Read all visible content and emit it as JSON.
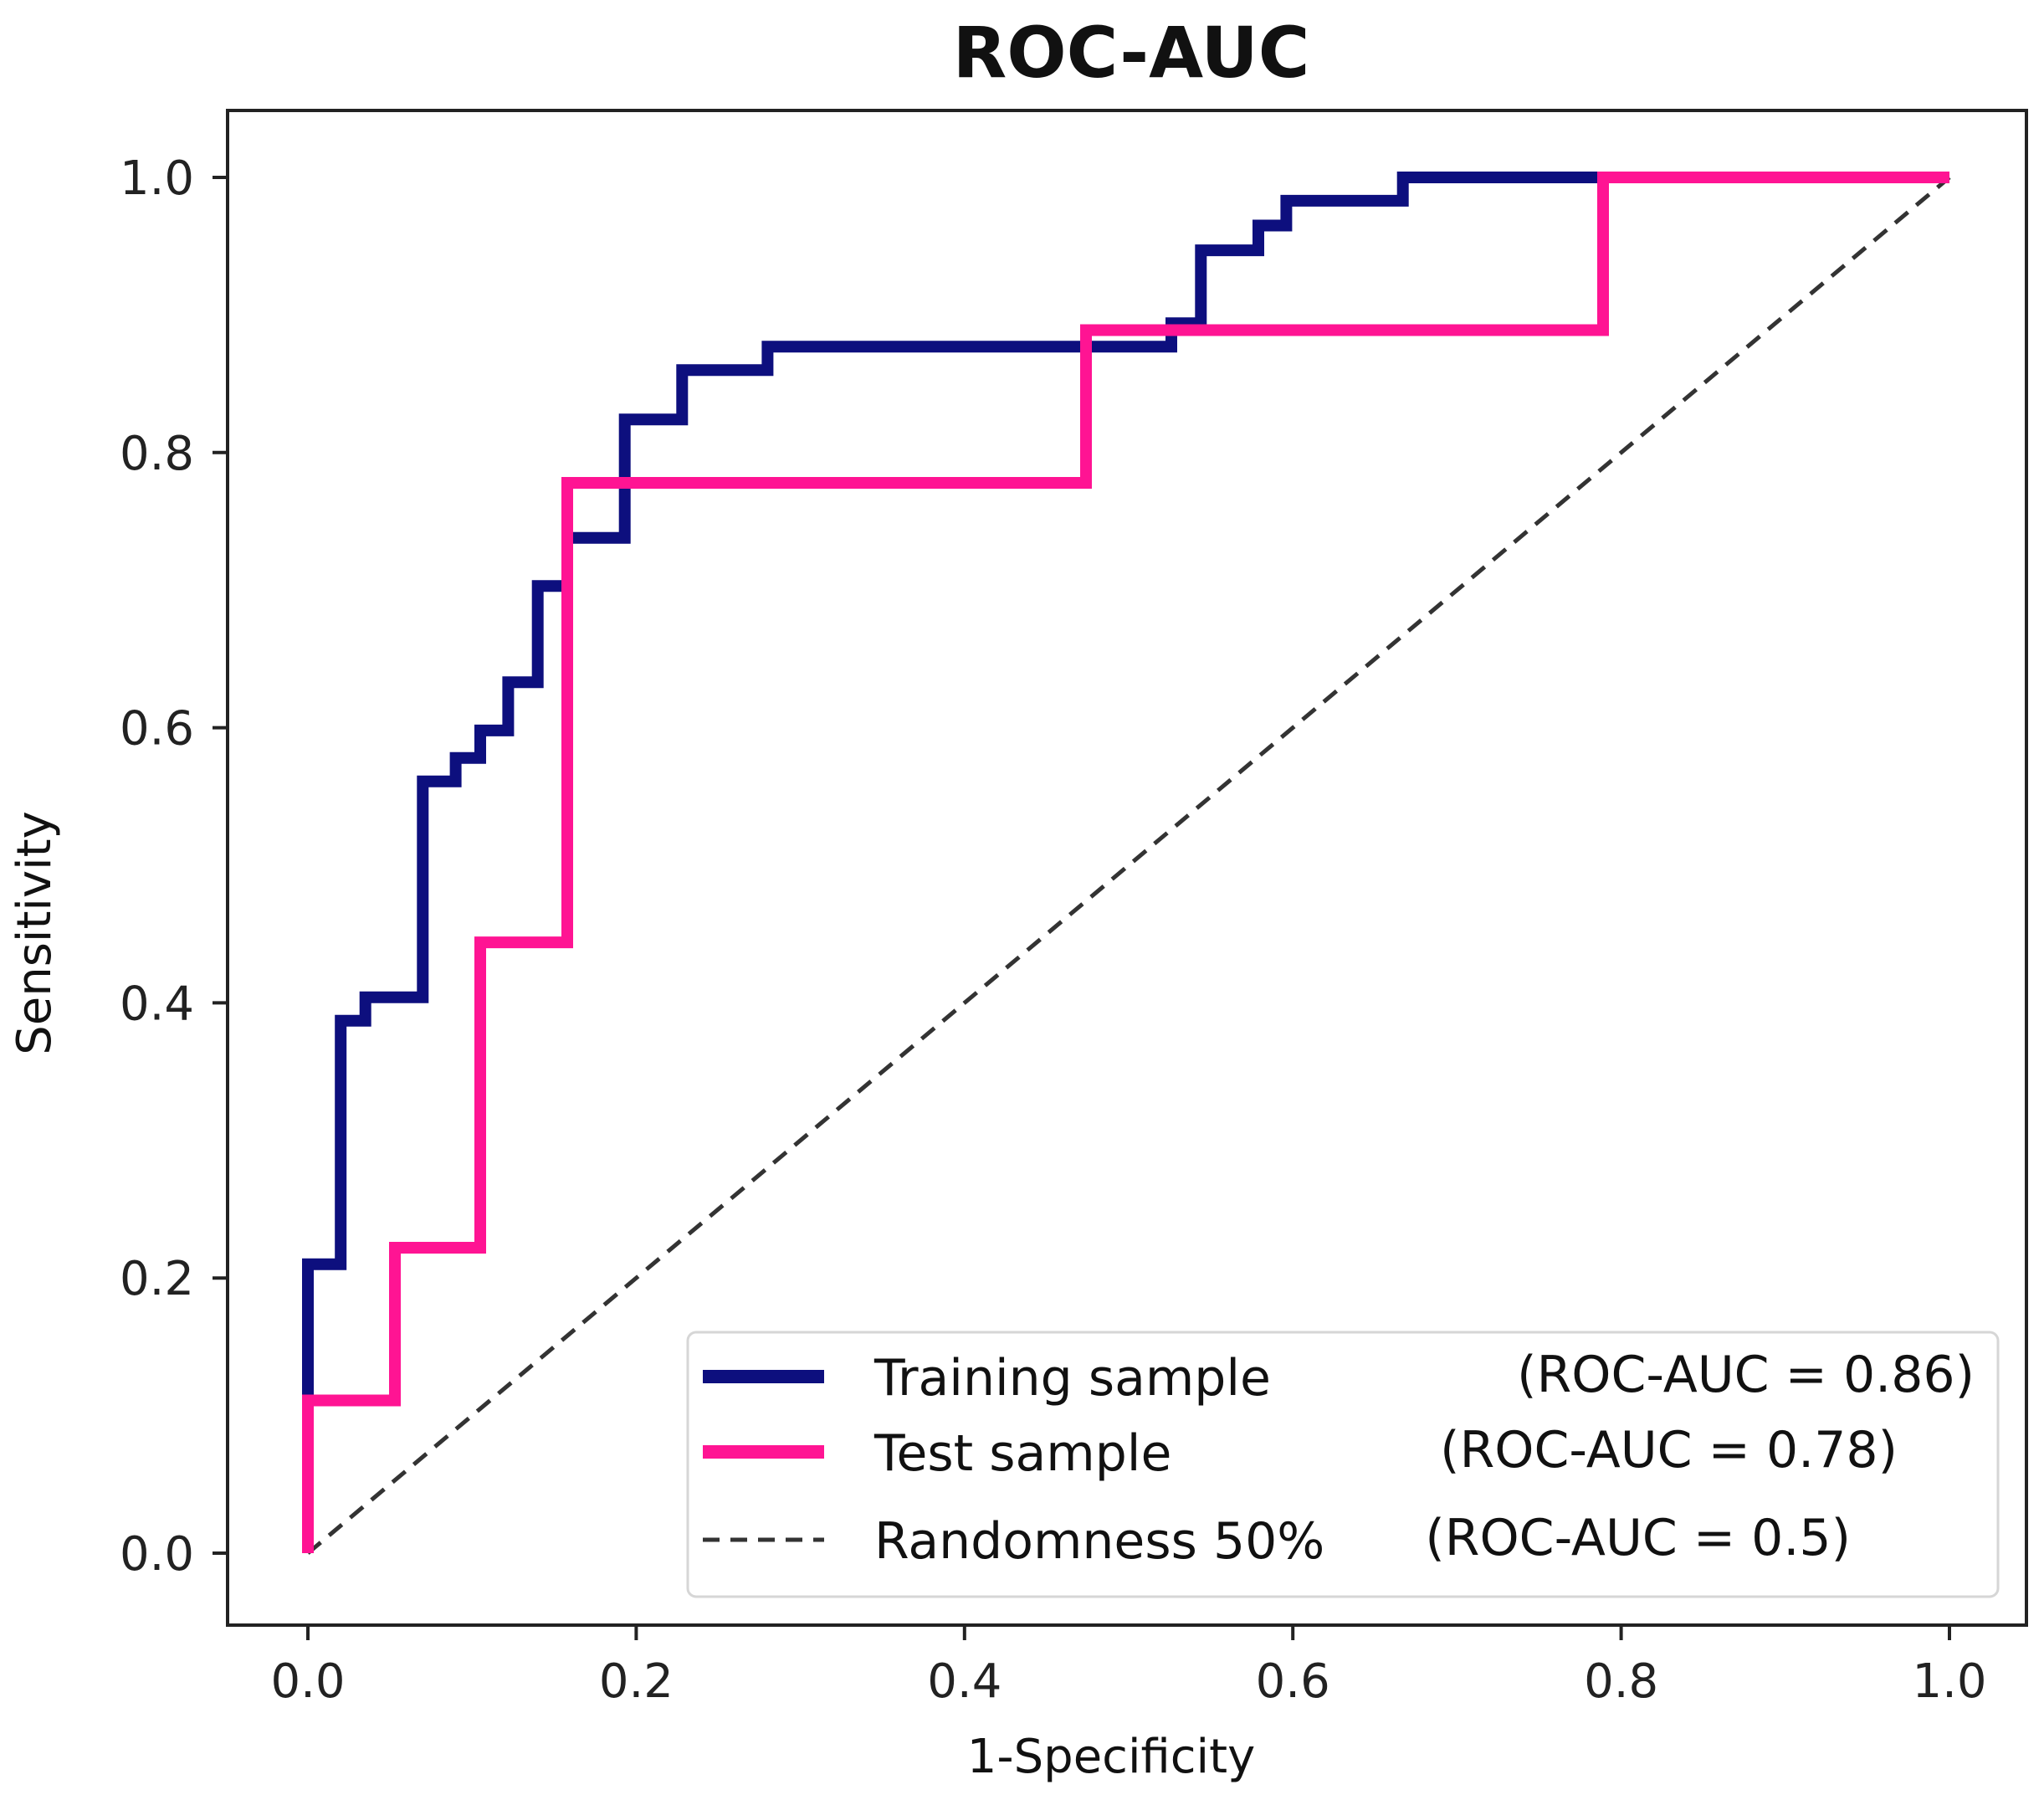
{
  "chart_data": {
    "type": "line",
    "title": "ROC-AUC",
    "xlabel": "1-Specificity",
    "ylabel": "Sensitivity",
    "xlim": [
      0.0,
      1.0
    ],
    "ylim": [
      0.0,
      1.0
    ],
    "x_ticks": [
      "0.0",
      "0.2",
      "0.4",
      "0.6",
      "0.8",
      "1.0"
    ],
    "y_ticks": [
      "0.0",
      "0.2",
      "0.4",
      "0.6",
      "0.8",
      "1.0"
    ],
    "grid": false,
    "legend_position": "lower-right",
    "series": [
      {
        "name": "Training sample",
        "auc_label": "(ROC-AUC = 0.86)",
        "color": "#0d0f7e",
        "style": "solid",
        "points": [
          [
            0.0,
            0.115
          ],
          [
            0.0,
            0.21
          ],
          [
            0.02,
            0.21
          ],
          [
            0.02,
            0.387
          ],
          [
            0.035,
            0.387
          ],
          [
            0.035,
            0.404
          ],
          [
            0.07,
            0.404
          ],
          [
            0.07,
            0.561
          ],
          [
            0.09,
            0.561
          ],
          [
            0.09,
            0.578
          ],
          [
            0.105,
            0.578
          ],
          [
            0.105,
            0.598
          ],
          [
            0.122,
            0.598
          ],
          [
            0.122,
            0.633
          ],
          [
            0.14,
            0.633
          ],
          [
            0.14,
            0.703
          ],
          [
            0.158,
            0.703
          ],
          [
            0.158,
            0.738
          ],
          [
            0.193,
            0.738
          ],
          [
            0.193,
            0.824
          ],
          [
            0.228,
            0.824
          ],
          [
            0.228,
            0.86
          ],
          [
            0.28,
            0.86
          ],
          [
            0.28,
            0.877
          ],
          [
            0.526,
            0.877
          ],
          [
            0.526,
            0.894
          ],
          [
            0.544,
            0.894
          ],
          [
            0.544,
            0.947
          ],
          [
            0.579,
            0.947
          ],
          [
            0.579,
            0.965
          ],
          [
            0.596,
            0.965
          ],
          [
            0.596,
            0.983
          ],
          [
            0.667,
            0.983
          ],
          [
            0.667,
            1.0
          ],
          [
            1.0,
            1.0
          ]
        ]
      },
      {
        "name": "Test sample",
        "auc_label": "(ROC-AUC = 0.78)",
        "color": "#ff1493",
        "style": "solid",
        "points": [
          [
            0.0,
            0.0
          ],
          [
            0.0,
            0.111
          ],
          [
            0.053,
            0.111
          ],
          [
            0.053,
            0.222
          ],
          [
            0.105,
            0.222
          ],
          [
            0.105,
            0.444
          ],
          [
            0.158,
            0.444
          ],
          [
            0.158,
            0.778
          ],
          [
            0.474,
            0.778
          ],
          [
            0.474,
            0.889
          ],
          [
            0.789,
            0.889
          ],
          [
            0.789,
            1.0
          ],
          [
            1.0,
            1.0
          ]
        ]
      },
      {
        "name": "Randomness 50%",
        "auc_label": "(ROC-AUC = 0.5)",
        "color": "#333333",
        "style": "dashed",
        "points": [
          [
            0.0,
            0.0
          ],
          [
            1.0,
            1.0
          ]
        ]
      }
    ]
  }
}
